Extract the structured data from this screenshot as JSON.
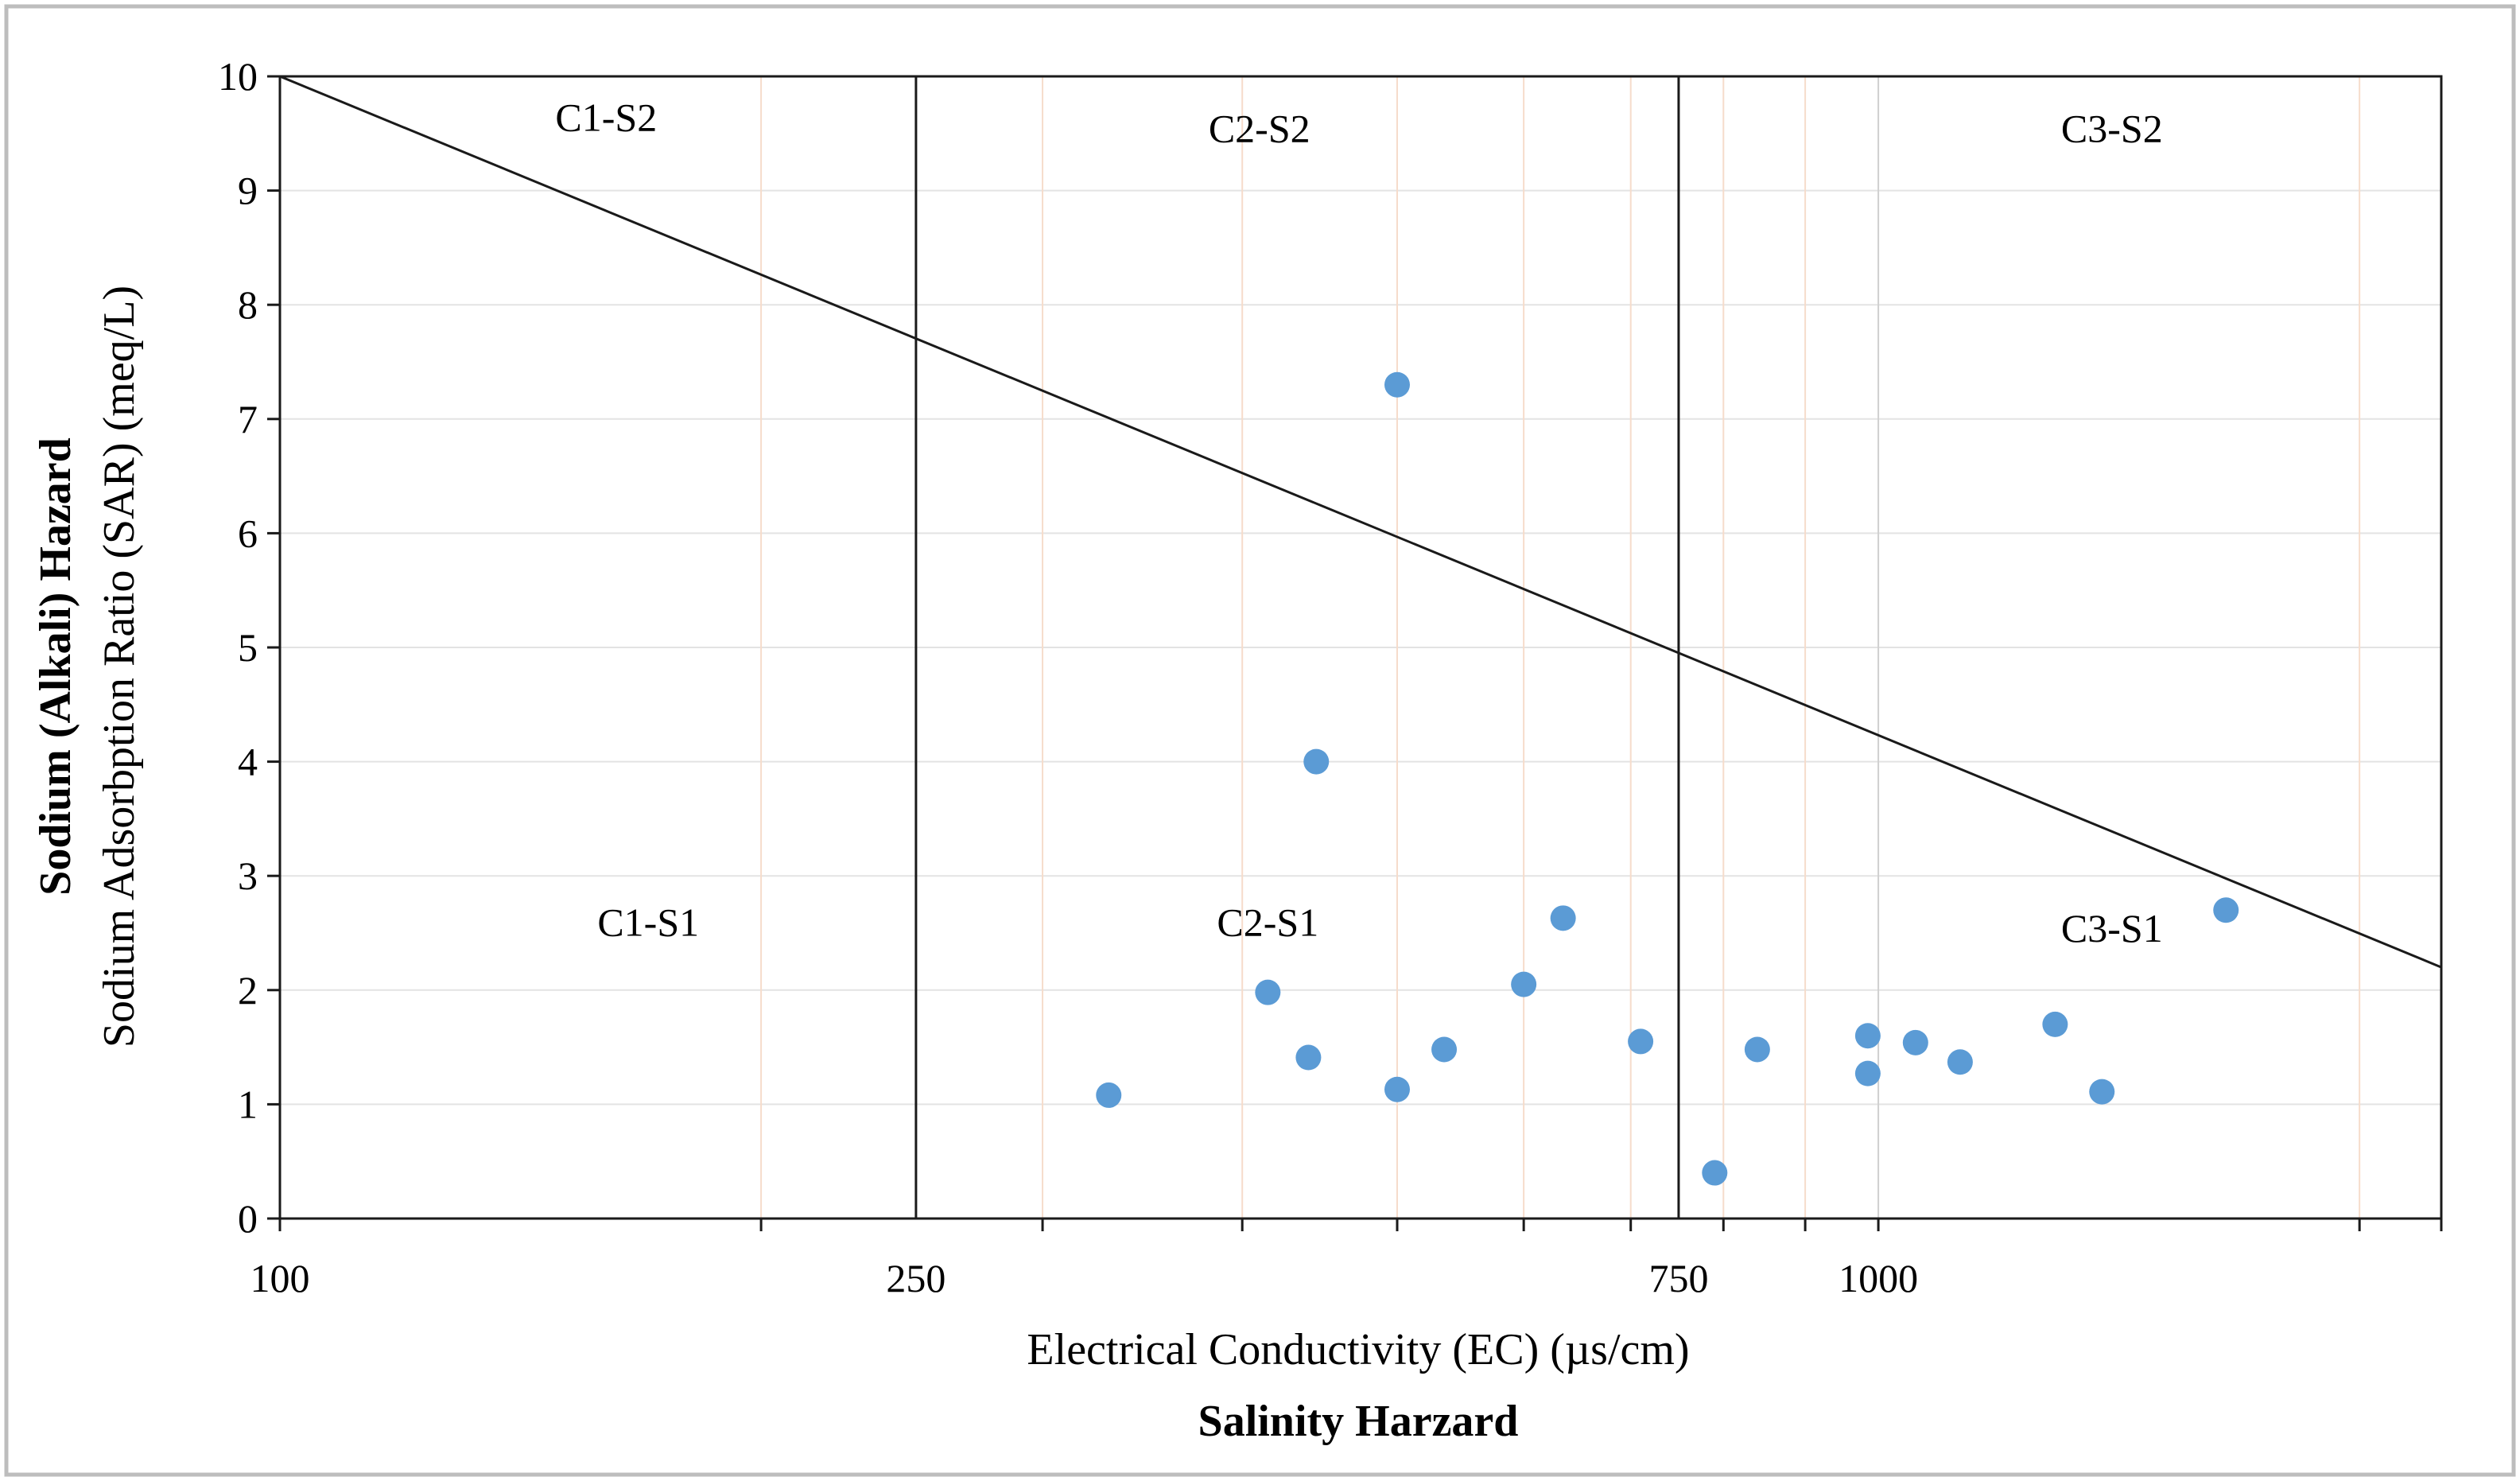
{
  "chart_data": {
    "type": "scatter",
    "title": "",
    "x_axis": {
      "scale": "log",
      "range": [
        100,
        2250
      ],
      "tick_labels": [
        "100",
        "250",
        "750",
        "1000"
      ],
      "label": "Electrical Conductivity (EC) (µs/cm)",
      "category": "Salinity Harzard"
    },
    "y_axis": {
      "scale": "linear",
      "range": [
        0,
        10
      ],
      "tick_labels": [
        "0",
        "1",
        "2",
        "3",
        "4",
        "5",
        "6",
        "7",
        "8",
        "9",
        "10"
      ],
      "label": "Sodium Adsorbption Ratio (SAR) (meq/L)",
      "category": "Sodium (Alkali) Hazard"
    },
    "boundaries": {
      "vertical_ec": [
        250,
        750
      ],
      "diagonal": {
        "from": {
          "x": 100,
          "y": 10
        },
        "to": {
          "x": 2250,
          "y": 2.2
        }
      }
    },
    "zones": [
      {
        "name": "C1-S2",
        "x": 160,
        "y": 9.65
      },
      {
        "name": "C2-S2",
        "x": 410,
        "y": 9.55
      },
      {
        "name": "C3-S2",
        "x": 1400,
        "y": 9.55
      },
      {
        "name": "C1-S1",
        "x": 170,
        "y": 2.6
      },
      {
        "name": "C2-S1",
        "x": 415,
        "y": 2.6
      },
      {
        "name": "C3-S1",
        "x": 1400,
        "y": 2.55
      }
    ],
    "series": [
      {
        "name": "Samples",
        "color": "#5b9bd5",
        "points": [
          {
            "x": 330,
            "y": 1.08
          },
          {
            "x": 415,
            "y": 1.98
          },
          {
            "x": 445,
            "y": 4.0
          },
          {
            "x": 440,
            "y": 1.41
          },
          {
            "x": 500,
            "y": 7.3
          },
          {
            "x": 500,
            "y": 1.13
          },
          {
            "x": 535,
            "y": 1.48
          },
          {
            "x": 600,
            "y": 2.05
          },
          {
            "x": 635,
            "y": 2.63
          },
          {
            "x": 710,
            "y": 1.55
          },
          {
            "x": 790,
            "y": 0.4
          },
          {
            "x": 840,
            "y": 1.48
          },
          {
            "x": 985,
            "y": 1.6
          },
          {
            "x": 985,
            "y": 1.27
          },
          {
            "x": 1055,
            "y": 1.54
          },
          {
            "x": 1125,
            "y": 1.37
          },
          {
            "x": 1290,
            "y": 1.7
          },
          {
            "x": 1380,
            "y": 1.11
          },
          {
            "x": 1650,
            "y": 2.7
          }
        ]
      }
    ],
    "vertical_gridlines_ec": [
      200,
      300,
      400,
      500,
      600,
      700,
      800,
      900,
      1000,
      2000
    ]
  }
}
